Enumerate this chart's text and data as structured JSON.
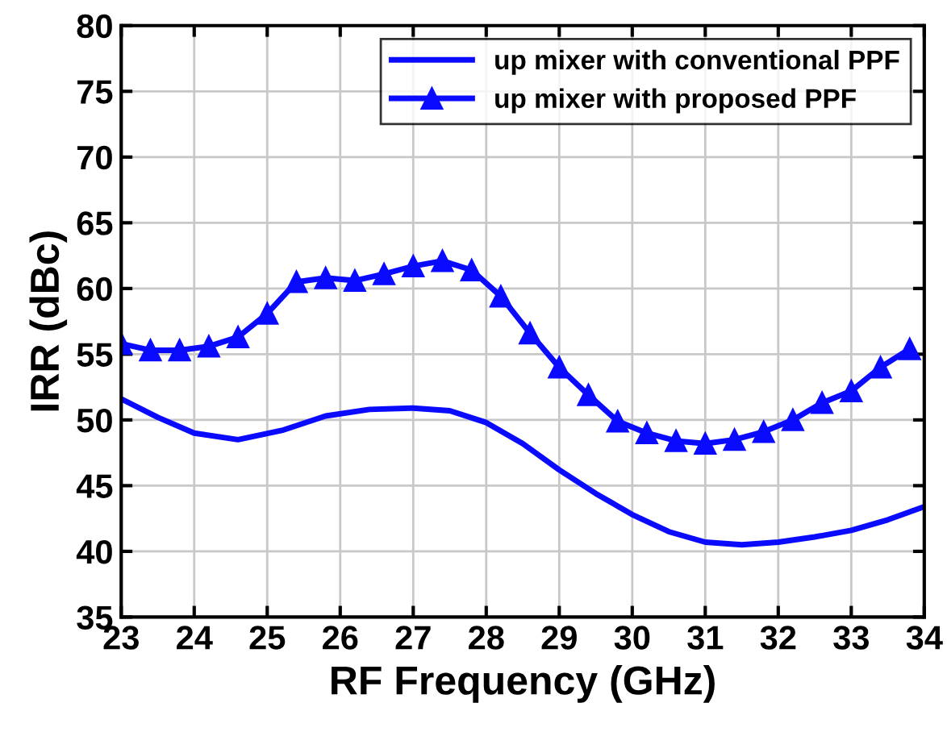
{
  "chart_data": {
    "type": "line",
    "xlabel": "RF Frequency (GHz)",
    "ylabel": "IRR (dBc)",
    "xlim": [
      23,
      34
    ],
    "ylim": [
      35,
      80
    ],
    "xticks": [
      23,
      24,
      25,
      26,
      27,
      28,
      29,
      30,
      31,
      32,
      33,
      34
    ],
    "yticks": [
      35,
      40,
      45,
      50,
      55,
      60,
      65,
      70,
      75,
      80
    ],
    "grid": true,
    "legend": "top right",
    "line_style": "solid",
    "series": [
      {
        "name": "up mixer with conventional PPF",
        "color": "#0a0aff",
        "marker": "none",
        "x": [
          23,
          23.5,
          24,
          24.6,
          25.2,
          25.8,
          26.4,
          27,
          27.5,
          28,
          28.5,
          29,
          29.5,
          30,
          30.5,
          31,
          31.5,
          32,
          32.5,
          33,
          33.5,
          34
        ],
        "values": [
          51.6,
          50.2,
          49.0,
          48.5,
          49.2,
          50.3,
          50.8,
          50.9,
          50.7,
          49.8,
          48.2,
          46.2,
          44.4,
          42.8,
          41.5,
          40.7,
          40.5,
          40.7,
          41.1,
          41.6,
          42.4,
          43.4
        ]
      },
      {
        "name": "up mixer with proposed PPF",
        "color": "#0a0aff",
        "marker": "triangle",
        "x": [
          23,
          23.4,
          23.8,
          24.2,
          24.6,
          25.0,
          25.4,
          25.8,
          26.2,
          26.6,
          27.0,
          27.4,
          27.8,
          28.2,
          28.6,
          29.0,
          29.4,
          29.8,
          30.2,
          30.6,
          31.0,
          31.4,
          31.8,
          32.2,
          32.6,
          33.0,
          33.4,
          33.8
        ],
        "values": [
          55.8,
          55.3,
          55.3,
          55.6,
          56.3,
          58.1,
          60.5,
          60.8,
          60.6,
          61.1,
          61.7,
          62.1,
          61.4,
          59.4,
          56.6,
          54.0,
          51.9,
          49.9,
          49.0,
          48.4,
          48.2,
          48.5,
          49.1,
          50.0,
          51.3,
          52.2,
          54.0,
          55.4
        ]
      }
    ]
  }
}
